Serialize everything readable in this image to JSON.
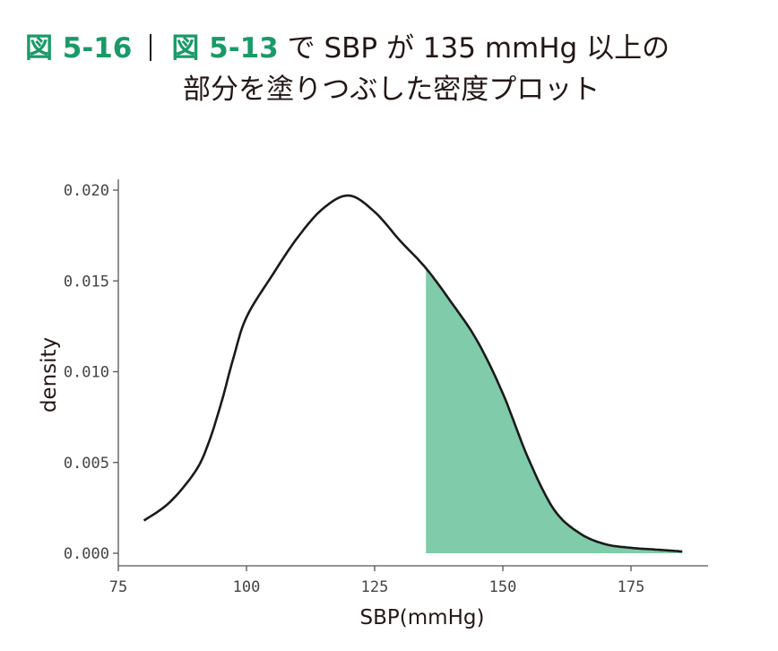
{
  "title": {
    "figure_label": "図 5-16",
    "line1_ref": "図 5-13",
    "line1_text": " で SBP が 135 mmHg 以上の",
    "line2_text": "部分を塗りつぶした密度プロット"
  },
  "colors": {
    "accent": "#1a9a68",
    "fill": "#80cba9",
    "line": "#1a1a1a",
    "axis": "#555555"
  },
  "chart_data": {
    "type": "area",
    "xlabel": "SBP(mmHg)",
    "ylabel": "density",
    "xlim": [
      75,
      190
    ],
    "ylim": [
      0,
      0.0205
    ],
    "x_ticks": [
      75,
      100,
      125,
      150,
      175
    ],
    "x_tick_labels": [
      "75",
      "100",
      "125",
      "150",
      "175"
    ],
    "y_ticks": [
      0,
      0.005,
      0.01,
      0.015,
      0.02
    ],
    "y_tick_labels": [
      "0.000",
      "0.005",
      "0.010",
      "0.015",
      "0.020"
    ],
    "shade_from_x": 135,
    "series": [
      {
        "x": [
          80,
          85,
          90,
          92.5,
          95,
          97.5,
          100,
          105,
          110,
          115,
          120,
          125,
          130,
          135,
          140,
          145,
          150,
          155,
          160,
          165,
          170,
          175,
          180,
          185
        ],
        "y": [
          0.0018,
          0.0028,
          0.0045,
          0.006,
          0.0082,
          0.0108,
          0.013,
          0.0153,
          0.0174,
          0.019,
          0.0197,
          0.0188,
          0.0172,
          0.0157,
          0.0138,
          0.0117,
          0.0088,
          0.0052,
          0.0024,
          0.0011,
          0.0005,
          0.0003,
          0.0002,
          0.0001
        ]
      }
    ]
  }
}
